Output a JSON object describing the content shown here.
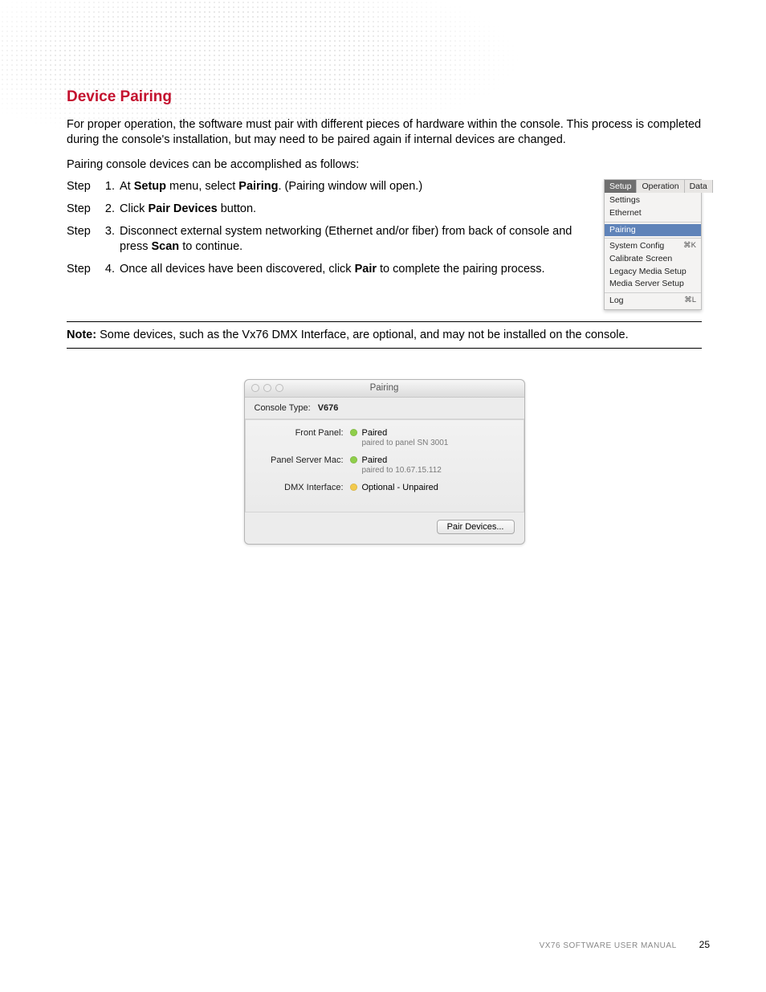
{
  "colors": {
    "heading": "#c4122f",
    "status_green": "#8fce4a",
    "status_yellow": "#f2c94c",
    "menu_highlight": "#5f83b9"
  },
  "heading": "Device Pairing",
  "intro": "For proper operation, the software must pair with different pieces of hardware within the console. This process is completed during the console's installation, but may need to be paired again if internal devices are changed.",
  "para": "Pairing console devices can be accomplished as follows:",
  "steps": [
    {
      "label": "Step",
      "num": "1.",
      "html": "At <b>Setup</b> menu, select <b>Pairing</b>. (Pairing window will open.)"
    },
    {
      "label": "Step",
      "num": "2.",
      "html": "Click <b>Pair Devices</b> button."
    },
    {
      "label": "Step",
      "num": "3.",
      "html": "Disconnect external system networking (Ethernet and/or fiber) from back of console and press <b>Scan</b> to continue."
    },
    {
      "label": "Step",
      "num": "4.",
      "html": "Once all devices have been discovered, click <b>Pair</b> to complete the pairing process."
    }
  ],
  "menu": {
    "tabs": [
      "Setup",
      "Operation",
      "Data"
    ],
    "active_tab": "Setup",
    "groups": [
      [
        {
          "label": "Settings",
          "shortcut": ""
        },
        {
          "label": "Ethernet",
          "shortcut": ""
        }
      ],
      [
        {
          "label": "Pairing",
          "shortcut": "",
          "highlight": true
        }
      ],
      [
        {
          "label": "System Config",
          "shortcut": "⌘K"
        },
        {
          "label": "Calibrate Screen",
          "shortcut": ""
        },
        {
          "label": "Legacy Media Setup",
          "shortcut": ""
        },
        {
          "label": "Media Server Setup",
          "shortcut": ""
        }
      ],
      [
        {
          "label": "Log",
          "shortcut": "⌘L"
        }
      ]
    ]
  },
  "note_label": "Note:",
  "note_text": "Some devices, such as the Vx76 DMX Interface, are optional, and may not be installed on the console.",
  "pairing_window": {
    "title": "Pairing",
    "console_type_label": "Console Type:",
    "console_type_value": "V676",
    "rows": [
      {
        "label": "Front Panel:",
        "status": "Paired",
        "status_color": "#8fce4a",
        "sub": "paired to panel SN 3001"
      },
      {
        "label": "Panel Server Mac:",
        "status": "Paired",
        "status_color": "#8fce4a",
        "sub": "paired to 10.67.15.112"
      },
      {
        "label": "DMX Interface:",
        "status": "Optional - Unpaired",
        "status_color": "#f2c94c",
        "sub": ""
      }
    ],
    "button": "Pair Devices..."
  },
  "footer": {
    "text": "VX76 SOFTWARE USER MANUAL",
    "page": "25"
  }
}
